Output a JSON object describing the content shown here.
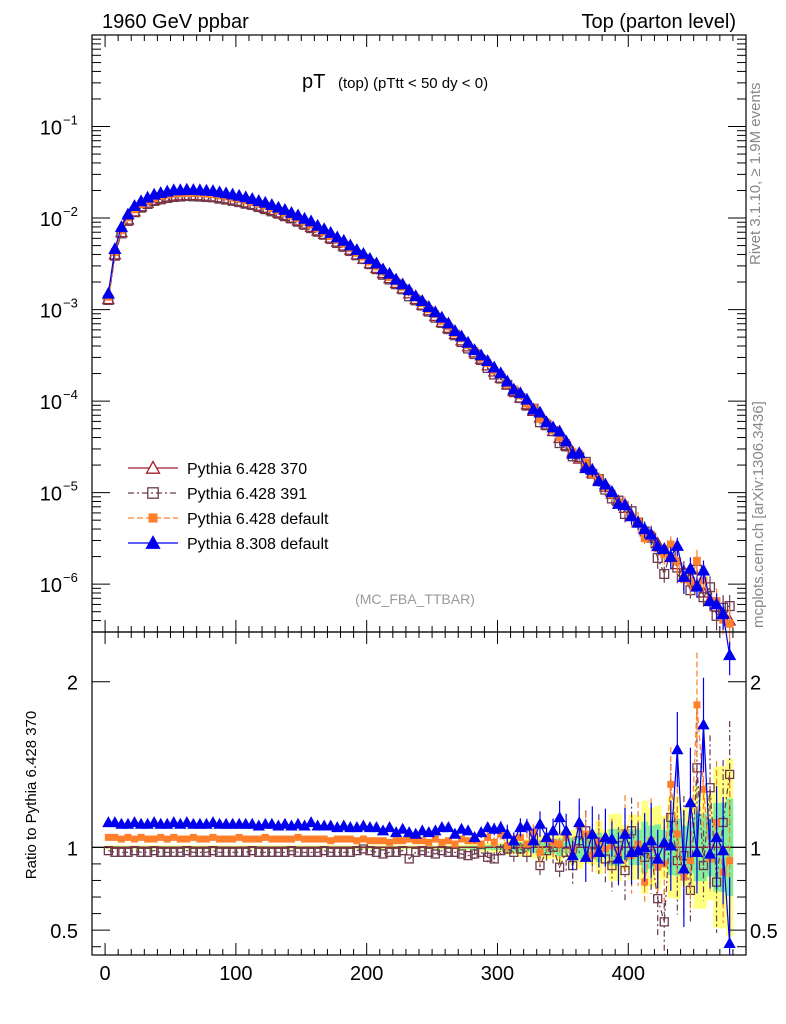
{
  "header": {
    "left": "1960 GeV ppbar",
    "right": "Top (parton level)"
  },
  "side_labels": {
    "rivet": "Rivet 3.1.10, ≥ 1.9M events",
    "source": "mcplots.cern.ch [arXiv:1306.3436]"
  },
  "chart_data": [
    {
      "type": "line",
      "title": "pT (top) (pTtt < 50 dy < 0)",
      "title_main": "pT",
      "title_sub": "(top)  (pTtt < 50 dy < 0)",
      "annotation": "(MC_FBA_TTBAR)",
      "yscale": "log",
      "xlim": [
        -10,
        490
      ],
      "ylim": [
        3e-07,
        1
      ],
      "xlabel": "",
      "ylabel": "",
      "y_tick_labels": [
        "10^-6",
        "10^-5",
        "10^-4",
        "10^-3",
        "10^-2",
        "10^-1"
      ],
      "legend_position": "bottom-left",
      "x": [
        2.5,
        7.5,
        12.5,
        17.5,
        22.5,
        27.5,
        32.5,
        37.5,
        42.5,
        47.5,
        52.5,
        57.5,
        62.5,
        67.5,
        72.5,
        77.5,
        82.5,
        87.5,
        92.5,
        97.5,
        102.5,
        107.5,
        112.5,
        117.5,
        122.5,
        127.5,
        132.5,
        137.5,
        142.5,
        147.5,
        152.5,
        157.5,
        162.5,
        167.5,
        172.5,
        177.5,
        182.5,
        187.5,
        192.5,
        197.5,
        202.5,
        207.5,
        212.5,
        217.5,
        222.5,
        227.5,
        232.5,
        237.5,
        242.5,
        247.5,
        252.5,
        257.5,
        262.5,
        267.5,
        272.5,
        277.5,
        282.5,
        287.5,
        292.5,
        297.5,
        302.5,
        307.5,
        312.5,
        317.5,
        322.5,
        327.5,
        332.5,
        337.5,
        342.5,
        347.5,
        352.5,
        357.5,
        362.5,
        367.5,
        372.5,
        377.5,
        382.5,
        387.5,
        392.5,
        397.5,
        402.5,
        407.5,
        412.5,
        417.5,
        422.5,
        427.5,
        432.5,
        437.5,
        442.5,
        447.5,
        452.5,
        457.5,
        462.5,
        467.5,
        472.5,
        477.5
      ],
      "series": [
        {
          "name": "Pythia 6.428 370",
          "color": "#a1212b",
          "marker": "open-triangle",
          "values": [
            0.0013,
            0.004,
            0.007,
            0.0096,
            0.0118,
            0.0134,
            0.0147,
            0.0157,
            0.0165,
            0.0171,
            0.0175,
            0.0177,
            0.0178,
            0.0178,
            0.0177,
            0.0175,
            0.0172,
            0.0168,
            0.0164,
            0.0159,
            0.0154,
            0.0148,
            0.0142,
            0.0136,
            0.0129,
            0.0122,
            0.0115,
            0.0108,
            0.0101,
            0.0094,
            0.0087,
            0.008,
            0.0073,
            0.0067,
            0.0061,
            0.0055,
            0.005,
            0.0045,
            0.004,
            0.0036,
            0.0032,
            0.00285,
            0.0025,
            0.0022,
            0.00195,
            0.0017,
            0.0015,
            0.0013,
            0.00113,
            0.00098,
            0.00085,
            0.00073,
            0.00063,
            0.00054,
            0.00046,
            0.000395,
            0.00034,
            0.00029,
            0.000245,
            0.00021,
            0.00018,
            0.000152,
            0.000129,
            0.000109,
            9.2e-05,
            7.8e-05,
            6.6e-05,
            5.55e-05,
            4.7e-05,
            3.95e-05,
            3.3e-05,
            2.8e-05,
            2.35e-05,
            1.97e-05,
            1.65e-05,
            1.38e-05,
            1.16e-05,
            9.7e-06,
            8.1e-06,
            6.8e-06,
            5.7e-06,
            4.8e-06,
            4e-06,
            3.35e-06,
            2.8e-06,
            2.35e-06,
            1.97e-06,
            1.65e-06,
            1.38e-06,
            1.16e-06,
            9.7e-07,
            8.1e-07,
            6.8e-07,
            5.7e-07,
            4.8e-07,
            4e-07
          ]
        },
        {
          "name": "Pythia 6.428 391",
          "color": "#6b3a4e",
          "marker": "open-square",
          "ratio": [
            0.98,
            0.97,
            0.97,
            0.97,
            0.98,
            0.97,
            0.97,
            0.98,
            0.97,
            0.97,
            0.97,
            0.97,
            0.98,
            0.97,
            0.97,
            0.97,
            0.98,
            0.97,
            0.97,
            0.97,
            0.97,
            0.97,
            0.98,
            0.97,
            0.97,
            0.97,
            0.97,
            0.97,
            0.98,
            0.97,
            0.97,
            0.97,
            0.97,
            0.98,
            0.97,
            0.97,
            0.97,
            0.97,
            0.98,
            0.99,
            0.98,
            0.97,
            0.96,
            0.97,
            0.97,
            0.98,
            0.93,
            0.97,
            0.98,
            0.97,
            0.96,
            0.98,
            0.97,
            0.97,
            0.96,
            0.95,
            0.96,
            0.97,
            0.94,
            0.93,
            0.98,
            0.99,
            0.97,
            0.99,
            0.97,
            1.06,
            0.89,
            0.98,
            1.0,
            0.88,
            0.97,
            0.89,
            1.04,
            1.1,
            0.97,
            1.02,
            0.93,
            0.89,
            1.01,
            0.86,
            1.1,
            0.98,
            0.94,
            0.96,
            0.69,
            0.55,
            1.18,
            0.92,
            0.95,
            0.74,
            1.48,
            0.89,
            1.36,
            0.79,
            1.15,
            1.44
          ]
        },
        {
          "name": "Pythia 6.428 default",
          "color": "#ff7f2a",
          "marker": "filled-square",
          "ratio": [
            1.06,
            1.06,
            1.05,
            1.06,
            1.05,
            1.06,
            1.05,
            1.05,
            1.06,
            1.05,
            1.06,
            1.05,
            1.05,
            1.06,
            1.05,
            1.05,
            1.06,
            1.05,
            1.05,
            1.05,
            1.06,
            1.05,
            1.05,
            1.05,
            1.06,
            1.05,
            1.05,
            1.05,
            1.05,
            1.06,
            1.05,
            1.05,
            1.05,
            1.05,
            1.04,
            1.05,
            1.05,
            1.05,
            1.04,
            1.05,
            1.04,
            1.04,
            1.04,
            1.03,
            1.04,
            1.04,
            1.05,
            1.04,
            1.04,
            1.03,
            1.05,
            1.03,
            1.04,
            1.02,
            1.05,
            1.04,
            1.04,
            1.02,
            1.06,
            1.03,
            1.08,
            1.01,
            1.05,
            1.06,
            1.02,
            1.09,
            0.97,
            1.05,
            1.03,
            1.02,
            1.06,
            0.99,
            1.13,
            1.08,
            0.95,
            1.04,
            0.99,
            1.01,
            0.97,
            1.09,
            0.95,
            1.02,
            0.79,
            1.04,
            0.88,
            0.9,
            1.38,
            1.08,
            0.82,
            0.92,
            1.86,
            1.35,
            0.93,
            1.15,
            0.85,
            0.92
          ]
        },
        {
          "name": "Pythia 8.308 default",
          "color": "#0000ee",
          "marker": "filled-triangle",
          "ratio": [
            1.15,
            1.15,
            1.14,
            1.14,
            1.15,
            1.14,
            1.14,
            1.15,
            1.14,
            1.14,
            1.15,
            1.14,
            1.15,
            1.14,
            1.14,
            1.14,
            1.15,
            1.14,
            1.14,
            1.14,
            1.14,
            1.14,
            1.14,
            1.13,
            1.14,
            1.14,
            1.13,
            1.14,
            1.13,
            1.14,
            1.13,
            1.15,
            1.13,
            1.13,
            1.13,
            1.12,
            1.13,
            1.12,
            1.12,
            1.13,
            1.12,
            1.12,
            1.1,
            1.12,
            1.09,
            1.11,
            1.09,
            1.08,
            1.1,
            1.09,
            1.1,
            1.12,
            1.12,
            1.08,
            1.11,
            1.1,
            1.06,
            1.09,
            1.12,
            1.11,
            1.12,
            1.08,
            1.04,
            1.12,
            1.13,
            1.04,
            1.14,
            1.06,
            1.1,
            1.18,
            1.1,
            0.95,
            1.15,
            0.94,
            1.08,
            0.97,
            1.06,
            1.05,
            0.93,
            1.08,
            0.97,
            0.98,
            1.0,
            1.04,
            0.93,
            1.03,
            1.01,
            1.59,
            0.87,
            1.27,
            0.97,
            1.74,
            0.96,
            1.06,
            0.98,
            0.42
          ]
        }
      ]
    },
    {
      "type": "line",
      "title": "",
      "ylabel": "Ratio to Pythia 6.428 370",
      "xlim": [
        -10,
        490
      ],
      "ylim": [
        0.35,
        2.3
      ],
      "x_tick_labels": [
        "0",
        "100",
        "200",
        "300",
        "400"
      ],
      "y_tick_labels": [
        "0.5",
        "1",
        "2"
      ],
      "reference_line": 1,
      "uncertainty_bands": [
        "#ffff80",
        "#80ee99"
      ]
    }
  ]
}
